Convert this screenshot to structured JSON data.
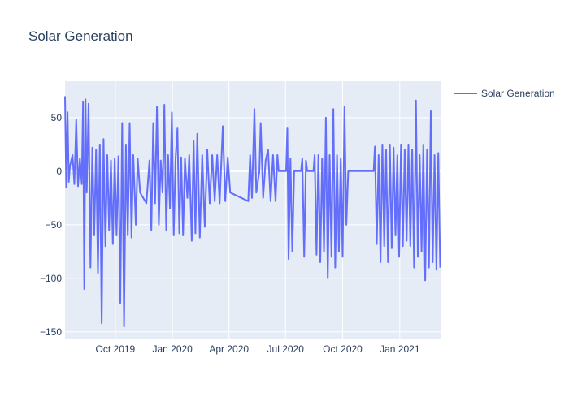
{
  "chart_data": {
    "type": "line",
    "title": "Solar Generation",
    "x": [
      "2019-07-12",
      "2019-07-14",
      "2019-07-16",
      "2019-07-18",
      "2019-07-20",
      "2019-07-24",
      "2019-07-27",
      "2019-07-30",
      "2019-08-02",
      "2019-08-05",
      "2019-08-08",
      "2019-08-10",
      "2019-08-12",
      "2019-08-14",
      "2019-08-16",
      "2019-08-19",
      "2019-08-22",
      "2019-08-25",
      "2019-08-28",
      "2019-08-31",
      "2019-09-03",
      "2019-09-06",
      "2019-09-09",
      "2019-09-12",
      "2019-09-15",
      "2019-09-18",
      "2019-09-21",
      "2019-09-24",
      "2019-09-27",
      "2019-09-30",
      "2019-10-03",
      "2019-10-06",
      "2019-10-09",
      "2019-10-12",
      "2019-10-15",
      "2019-10-18",
      "2019-10-21",
      "2019-10-24",
      "2019-10-27",
      "2019-10-30",
      "2019-11-03",
      "2019-11-06",
      "2019-11-10",
      "2019-11-20",
      "2019-11-25",
      "2019-11-28",
      "2019-12-01",
      "2019-12-04",
      "2019-12-07",
      "2019-12-10",
      "2019-12-13",
      "2019-12-16",
      "2019-12-19",
      "2019-12-22",
      "2019-12-25",
      "2019-12-28",
      "2019-12-31",
      "2020-01-03",
      "2020-01-06",
      "2020-01-09",
      "2020-01-12",
      "2020-01-15",
      "2020-01-18",
      "2020-01-21",
      "2020-01-25",
      "2020-01-28",
      "2020-02-01",
      "2020-02-04",
      "2020-02-07",
      "2020-02-10",
      "2020-02-14",
      "2020-02-18",
      "2020-02-22",
      "2020-02-26",
      "2020-03-01",
      "2020-03-05",
      "2020-03-09",
      "2020-03-13",
      "2020-03-17",
      "2020-03-22",
      "2020-03-26",
      "2020-03-30",
      "2020-04-03",
      "2020-05-02",
      "2020-05-05",
      "2020-05-08",
      "2020-05-12",
      "2020-05-15",
      "2020-05-20",
      "2020-05-22",
      "2020-05-26",
      "2020-05-30",
      "2020-06-03",
      "2020-06-07",
      "2020-06-11",
      "2020-06-15",
      "2020-06-18",
      "2020-06-20",
      "2020-07-02",
      "2020-07-04",
      "2020-07-06",
      "2020-07-09",
      "2020-07-12",
      "2020-07-15",
      "2020-07-26",
      "2020-07-28",
      "2020-07-31",
      "2020-08-03",
      "2020-08-05",
      "2020-08-15",
      "2020-08-17",
      "2020-08-20",
      "2020-08-23",
      "2020-08-26",
      "2020-08-29",
      "2020-09-01",
      "2020-09-04",
      "2020-09-07",
      "2020-09-10",
      "2020-09-13",
      "2020-09-16",
      "2020-09-19",
      "2020-09-22",
      "2020-09-25",
      "2020-09-28",
      "2020-10-01",
      "2020-10-04",
      "2020-10-07",
      "2020-10-10",
      "2020-11-20",
      "2020-11-22",
      "2020-11-25",
      "2020-11-28",
      "2020-12-01",
      "2020-12-04",
      "2020-12-07",
      "2020-12-10",
      "2020-12-13",
      "2020-12-16",
      "2020-12-19",
      "2020-12-22",
      "2020-12-25",
      "2020-12-28",
      "2020-12-31",
      "2021-01-03",
      "2021-01-06",
      "2021-01-09",
      "2021-01-12",
      "2021-01-15",
      "2021-01-18",
      "2021-01-21",
      "2021-01-24",
      "2021-01-27",
      "2021-01-30",
      "2021-02-02",
      "2021-02-05",
      "2021-02-08",
      "2021-02-11",
      "2021-02-14",
      "2021-02-17",
      "2021-02-20",
      "2021-02-23",
      "2021-02-26",
      "2021-03-01",
      "2021-03-04",
      "2021-03-07"
    ],
    "series": [
      {
        "name": "Solar Generation",
        "color": "#636efa",
        "values": [
          70,
          -15,
          55,
          -10,
          5,
          15,
          -12,
          48,
          -14,
          12,
          -12,
          65,
          -110,
          67,
          -20,
          63,
          -90,
          22,
          -60,
          20,
          -95,
          25,
          -142,
          30,
          -70,
          15,
          -55,
          10,
          -68,
          12,
          -60,
          14,
          -123,
          45,
          -145,
          25,
          -60,
          45,
          -62,
          15,
          -50,
          12,
          -20,
          -30,
          10,
          -55,
          45,
          -30,
          60,
          -50,
          10,
          -20,
          62,
          -55,
          15,
          -35,
          55,
          -60,
          12,
          40,
          -58,
          13,
          -60,
          12,
          -25,
          15,
          -65,
          28,
          -58,
          35,
          -62,
          15,
          -52,
          20,
          -30,
          15,
          -28,
          15,
          -30,
          42,
          -28,
          13,
          -20,
          -28,
          15,
          -25,
          58,
          -20,
          0,
          45,
          -25,
          10,
          20,
          -28,
          15,
          -28,
          15,
          0,
          0,
          40,
          -82,
          12,
          -75,
          0,
          0,
          12,
          -80,
          10,
          0,
          0,
          15,
          -78,
          15,
          -85,
          12,
          -75,
          50,
          -100,
          15,
          -80,
          58,
          -90,
          15,
          -75,
          12,
          -80,
          60,
          -50,
          0,
          0,
          23,
          -68,
          15,
          -85,
          25,
          -70,
          20,
          -85,
          25,
          -72,
          22,
          -60,
          15,
          -80,
          25,
          -70,
          20,
          -65,
          25,
          -70,
          20,
          -90,
          66,
          -80,
          15,
          -75,
          25,
          -102,
          20,
          -90,
          56,
          -85,
          15,
          -92,
          17,
          -90
        ]
      }
    ],
    "xlim": [
      "2019-07-12",
      "2021-03-09"
    ],
    "xticks": [
      {
        "value": "2019-10-01",
        "label": "Oct 2019"
      },
      {
        "value": "2020-01-01",
        "label": "Jan 2020"
      },
      {
        "value": "2020-04-01",
        "label": "Apr 2020"
      },
      {
        "value": "2020-07-01",
        "label": "Jul 2020"
      },
      {
        "value": "2020-10-01",
        "label": "Oct 2020"
      },
      {
        "value": "2021-01-01",
        "label": "Jan 2021"
      }
    ],
    "ylim": [
      -157,
      84
    ],
    "yticks": [
      {
        "value": -150,
        "label": "−150"
      },
      {
        "value": -100,
        "label": "−100"
      },
      {
        "value": -50,
        "label": "−50"
      },
      0,
      50
    ],
    "grid": true,
    "legend": "right"
  }
}
